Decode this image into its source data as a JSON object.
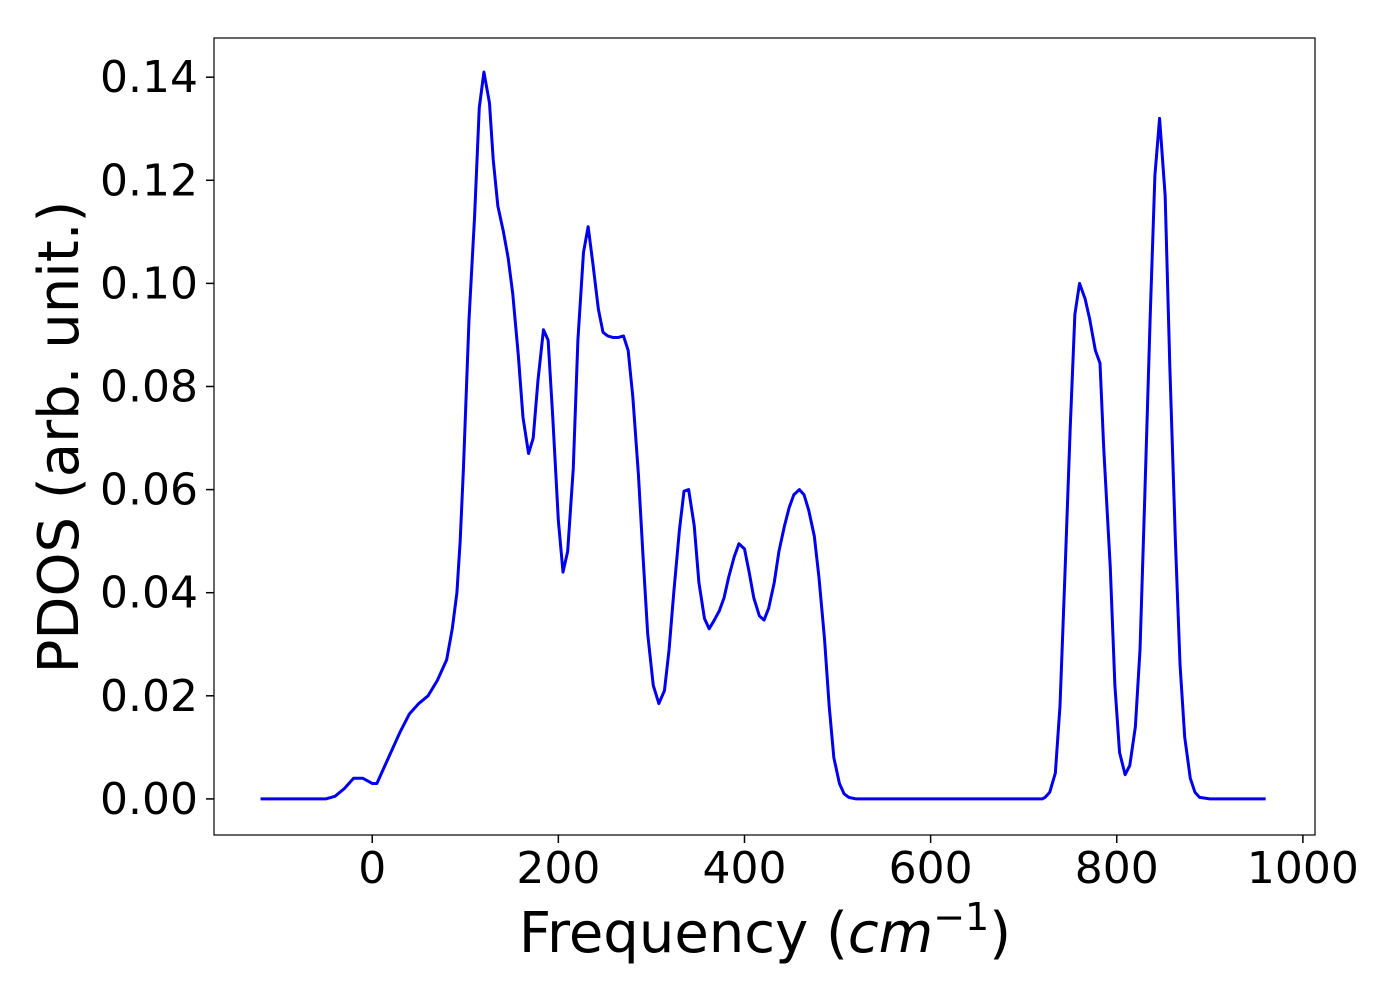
{
  "chart_data": {
    "type": "line",
    "xlabel": {
      "text": "Frequency (",
      "math": "cm",
      "sup": "−1",
      "end": ")"
    },
    "ylabel": "PDOS (arb. unit.)",
    "xlim": [
      -170,
      1013
    ],
    "ylim": [
      -0.007,
      0.1476
    ],
    "xticks": [
      0,
      200,
      400,
      600,
      800,
      1000
    ],
    "yticks": [
      {
        "value": 0,
        "label": "0.00"
      },
      0.02,
      0.04,
      0.06,
      0.08,
      {
        "value": 0.1,
        "label": "0.10"
      },
      0.12,
      0.14
    ],
    "series": [
      {
        "color": "#0000ee",
        "x": [
          -120,
          -100,
          -80,
          -60,
          -50,
          -40,
          -30,
          -20,
          -10,
          0,
          5,
          10,
          20,
          30,
          40,
          50,
          60,
          70,
          80,
          86,
          91,
          94.5,
          98,
          104,
          110,
          115,
          120,
          126,
          130,
          135,
          141,
          146,
          151,
          157,
          162,
          168,
          173,
          178,
          184,
          189,
          194,
          200,
          205,
          210,
          216,
          221,
          227,
          232,
          237,
          243,
          248,
          253,
          259,
          264,
          270,
          275,
          280,
          286,
          291,
          296,
          302,
          308,
          314,
          319,
          324,
          330,
          335,
          340,
          346,
          351,
          357,
          362,
          367,
          373,
          378,
          383,
          389,
          394,
          400,
          405,
          410,
          416,
          421,
          426,
          432,
          437,
          443,
          448,
          453,
          459,
          464,
          469,
          475,
          480,
          486,
          491,
          496,
          502,
          507,
          512,
          520,
          560,
          600,
          640,
          680,
          720,
          723,
          728,
          734,
          739,
          744,
          750,
          755,
          760,
          766,
          771,
          777,
          782,
          786,
          793,
          798,
          803,
          809,
          814,
          820,
          825,
          830,
          836,
          841,
          846,
          852,
          857,
          863,
          868,
          873,
          879,
          884,
          889,
          900,
          920,
          940,
          960
        ],
        "values": [
          0,
          0,
          0,
          0,
          0,
          0.0005,
          0.002,
          0.004,
          0.004,
          0.003,
          0.003,
          0.005,
          0.009,
          0.013,
          0.0165,
          0.0185,
          0.02,
          0.023,
          0.027,
          0.033,
          0.04,
          0.05,
          0.064,
          0.093,
          0.113,
          0.134,
          0.141,
          0.135,
          0.124,
          0.115,
          0.11,
          0.105,
          0.098,
          0.086,
          0.074,
          0.067,
          0.07,
          0.081,
          0.091,
          0.089,
          0.074,
          0.054,
          0.044,
          0.048,
          0.064,
          0.089,
          0.106,
          0.111,
          0.104,
          0.095,
          0.0905,
          0.0898,
          0.0895,
          0.0895,
          0.0898,
          0.087,
          0.078,
          0.063,
          0.047,
          0.032,
          0.022,
          0.0185,
          0.021,
          0.029,
          0.04,
          0.052,
          0.0597,
          0.06,
          0.053,
          0.042,
          0.035,
          0.033,
          0.0345,
          0.0365,
          0.039,
          0.043,
          0.047,
          0.0495,
          0.0485,
          0.044,
          0.039,
          0.0355,
          0.0347,
          0.037,
          0.042,
          0.048,
          0.053,
          0.0565,
          0.059,
          0.06,
          0.059,
          0.056,
          0.051,
          0.043,
          0.031,
          0.018,
          0.008,
          0.003,
          0.001,
          0.0003,
          0,
          0,
          0,
          0,
          0,
          0,
          0.0003,
          0.0013,
          0.005,
          0.018,
          0.042,
          0.072,
          0.094,
          0.1,
          0.097,
          0.093,
          0.087,
          0.0845,
          0.068,
          0.045,
          0.022,
          0.009,
          0.0047,
          0.0065,
          0.014,
          0.029,
          0.058,
          0.094,
          0.121,
          0.132,
          0.117,
          0.084,
          0.05,
          0.026,
          0.012,
          0.004,
          0.0013,
          0.0003,
          0,
          0,
          0,
          0
        ]
      }
    ]
  }
}
